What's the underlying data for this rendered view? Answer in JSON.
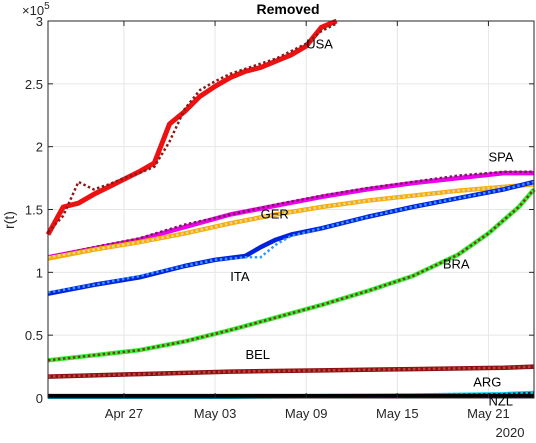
{
  "chart_data": {
    "type": "line",
    "title": "Removed",
    "ylabel": "r(t)",
    "xlabel": "",
    "x_start_label": "Apr 22",
    "x_end_label": "May 24",
    "xlim": [
      "Apr 22",
      "May 24"
    ],
    "ylim": [
      0,
      3
    ],
    "y_multiplier": "×10^5",
    "y_exponent_base": "×10",
    "y_exponent_power": "5",
    "x_ticks": [
      {
        "x": "Apr 27",
        "label": "Apr 27"
      },
      {
        "x": "May 03",
        "label": "May 03"
      },
      {
        "x": "May 09",
        "label": "May 09"
      },
      {
        "x": "May 15",
        "label": "May 15"
      },
      {
        "x": "May 21",
        "label": "May 21"
      }
    ],
    "x_year_label": "2020",
    "y_ticks": [
      {
        "y": 0,
        "label": "0"
      },
      {
        "y": 0.5,
        "label": "0.5"
      },
      {
        "y": 1,
        "label": "1"
      },
      {
        "y": 1.5,
        "label": "1.5"
      },
      {
        "y": 2,
        "label": "2"
      },
      {
        "y": 2.5,
        "label": "2.5"
      },
      {
        "y": 3,
        "label": "3"
      }
    ],
    "grid": true,
    "series": [
      {
        "name": "USA",
        "color": "#ee1111",
        "fit_color": "#8b1a1a",
        "label": {
          "x": "May 09",
          "y": 2.78
        },
        "x": [
          "Apr 22",
          "Apr 23",
          "Apr 24",
          "Apr 25",
          "Apr 26",
          "Apr 27",
          "Apr 28",
          "Apr 29",
          "Apr 30",
          "May 01",
          "May 02",
          "May 03",
          "May 04",
          "May 05",
          "May 06",
          "May 07",
          "May 08",
          "May 09",
          "May 10",
          "May 11"
        ],
        "data": [
          1.3,
          1.52,
          1.55,
          1.62,
          1.68,
          1.74,
          1.8,
          1.87,
          2.18,
          2.28,
          2.4,
          2.48,
          2.55,
          2.6,
          2.63,
          2.68,
          2.73,
          2.8,
          2.95,
          3.0
        ],
        "fit": [
          1.32,
          1.45,
          1.72,
          1.66,
          1.7,
          1.75,
          1.79,
          1.84,
          2.04,
          2.3,
          2.45,
          2.52,
          2.58,
          2.62,
          2.66,
          2.7,
          2.76,
          2.82,
          2.92,
          2.98
        ]
      },
      {
        "name": "SPA",
        "color": "#ee00ee",
        "fit_color": "#7a1a5a",
        "label": {
          "x": "May 21",
          "y": 1.88
        },
        "x": [
          "Apr 22",
          "Apr 25",
          "Apr 28",
          "May 01",
          "May 04",
          "May 07",
          "May 10",
          "May 13",
          "May 16",
          "May 19",
          "May 22",
          "May 24"
        ],
        "data": [
          1.12,
          1.19,
          1.26,
          1.36,
          1.46,
          1.53,
          1.6,
          1.66,
          1.71,
          1.75,
          1.79,
          1.79
        ],
        "fit": [
          1.12,
          1.2,
          1.27,
          1.38,
          1.46,
          1.54,
          1.61,
          1.67,
          1.72,
          1.77,
          1.8,
          1.8
        ]
      },
      {
        "name": "GER",
        "color": "#ffaa00",
        "fit_color": "#d8d8a0",
        "label": {
          "x": "May 06",
          "y": 1.43
        },
        "x": [
          "Apr 22",
          "Apr 25",
          "Apr 28",
          "May 01",
          "May 04",
          "May 07",
          "May 10",
          "May 13",
          "May 16",
          "May 19",
          "May 22",
          "May 24"
        ],
        "data": [
          1.11,
          1.18,
          1.24,
          1.31,
          1.39,
          1.46,
          1.52,
          1.57,
          1.61,
          1.65,
          1.68,
          1.7
        ],
        "fit": [
          1.12,
          1.18,
          1.24,
          1.31,
          1.39,
          1.46,
          1.52,
          1.57,
          1.61,
          1.65,
          1.68,
          1.7
        ]
      },
      {
        "name": "ITA",
        "color": "#0022dd",
        "fit_color": "#3399ff",
        "label": {
          "x": "May 04",
          "y": 0.93
        },
        "x": [
          "Apr 22",
          "Apr 25",
          "Apr 28",
          "May 01",
          "May 03",
          "May 05",
          "May 06",
          "May 07",
          "May 08",
          "May 10",
          "May 13",
          "May 16",
          "May 19",
          "May 22",
          "May 24"
        ],
        "data": [
          0.83,
          0.9,
          0.96,
          1.05,
          1.1,
          1.13,
          1.2,
          1.26,
          1.3,
          1.35,
          1.44,
          1.52,
          1.59,
          1.66,
          1.72
        ],
        "fit": [
          0.84,
          0.9,
          0.97,
          1.05,
          1.1,
          1.12,
          1.12,
          1.22,
          1.29,
          1.35,
          1.44,
          1.52,
          1.59,
          1.66,
          1.72
        ]
      },
      {
        "name": "BRA",
        "color": "#33ee33",
        "fit_color": "#7a3a1a",
        "label": {
          "x": "May 18",
          "y": 1.03
        },
        "x": [
          "Apr 22",
          "Apr 25",
          "Apr 28",
          "May 01",
          "May 04",
          "May 07",
          "May 10",
          "May 13",
          "May 16",
          "May 19",
          "May 21",
          "May 23",
          "May 24"
        ],
        "data": [
          0.3,
          0.34,
          0.38,
          0.45,
          0.54,
          0.64,
          0.74,
          0.85,
          0.97,
          1.14,
          1.31,
          1.52,
          1.66
        ],
        "fit": [
          0.3,
          0.34,
          0.38,
          0.45,
          0.54,
          0.64,
          0.74,
          0.85,
          0.97,
          1.14,
          1.31,
          1.52,
          1.66
        ]
      },
      {
        "name": "BEL",
        "color": "#8b1111",
        "fit_color": "#c04040",
        "label": {
          "x": "May 05",
          "y": 0.31
        },
        "x": [
          "Apr 22",
          "Apr 28",
          "May 04",
          "May 10",
          "May 16",
          "May 22",
          "May 24"
        ],
        "data": [
          0.17,
          0.19,
          0.21,
          0.22,
          0.23,
          0.24,
          0.25
        ],
        "fit": [
          0.17,
          0.19,
          0.21,
          0.22,
          0.23,
          0.24,
          0.25
        ]
      },
      {
        "name": "ARG",
        "color": "#00ccee",
        "fit_color": "#002244",
        "label": {
          "x": "May 20",
          "y": 0.09
        },
        "x": [
          "Apr 22",
          "Apr 28",
          "May 04",
          "May 10",
          "May 16",
          "May 22",
          "May 24"
        ],
        "data": [
          0.01,
          0.01,
          0.01,
          0.015,
          0.02,
          0.03,
          0.04
        ],
        "fit": [
          0.01,
          0.01,
          0.01,
          0.015,
          0.02,
          0.03,
          0.04
        ]
      },
      {
        "name": "NZL",
        "color": "#000000",
        "fit_color": "#000000",
        "label": {
          "x": "May 21",
          "y": -0.06
        },
        "x": [
          "Apr 22",
          "May 24"
        ],
        "data": [
          0.015,
          0.015
        ],
        "fit": [
          0.015,
          0.015
        ]
      }
    ]
  }
}
